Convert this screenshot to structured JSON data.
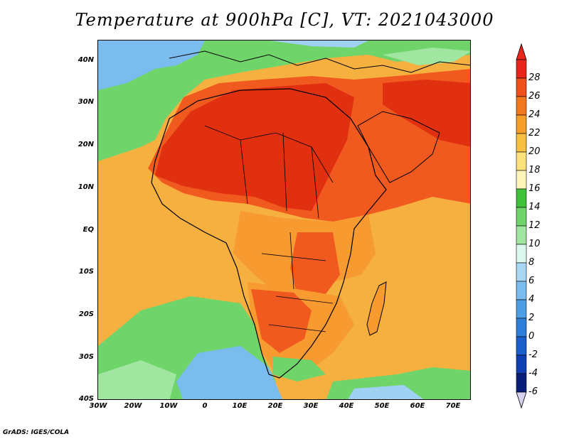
{
  "title": "Temperature at 900hPa [C], VT: 2021043000",
  "footer": "GrADS: IGES/COLA",
  "lat_labels": [
    "40N",
    "30N",
    "20N",
    "10N",
    "EQ",
    "10S",
    "20S",
    "30S",
    "40S"
  ],
  "lon_labels": [
    "30W",
    "20W",
    "10W",
    "0",
    "10E",
    "20E",
    "30E",
    "40E",
    "50E",
    "60E",
    "70E"
  ],
  "colorbar": {
    "labels": [
      "28",
      "26",
      "24",
      "22",
      "20",
      "18",
      "16",
      "14",
      "12",
      "10",
      "8",
      "6",
      "4",
      "2",
      "0",
      "-2",
      "-4",
      "-6"
    ],
    "colors": [
      "#e8261c",
      "#f0501c",
      "#f2781e",
      "#f59e2a",
      "#f8c040",
      "#fbe27a",
      "#fdf5b8",
      "#3fc13a",
      "#6fd46a",
      "#a0e6a0",
      "#dcf7ee",
      "#a9d8f4",
      "#7bbcef",
      "#4e9ee6",
      "#2d7fda",
      "#1a5fcb",
      "#0f3fb0",
      "#0a1f7a"
    ]
  },
  "map": {
    "region_colors": {
      "hot": "#e03010",
      "very_warm": "#f05a1e",
      "warm": "#f79a30",
      "mild": "#f8be4a",
      "cool": "#6fd46a",
      "cold": "#7bbcef",
      "colder": "#a0d0f2",
      "ocean_warm": "#f6b040"
    }
  }
}
